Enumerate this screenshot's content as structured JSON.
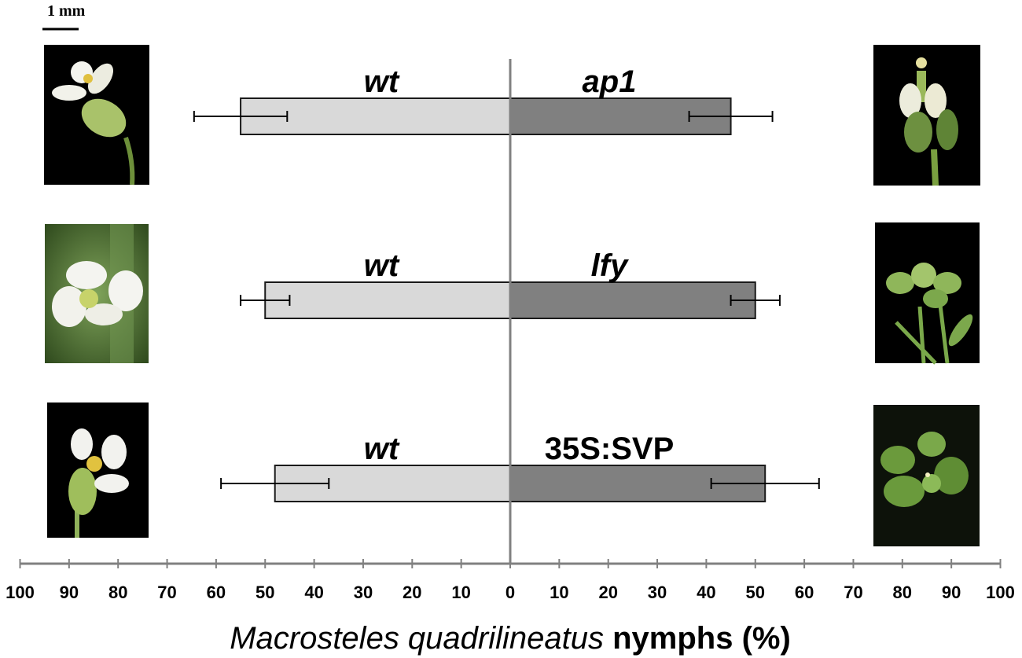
{
  "scale_bar": {
    "label": "1 mm"
  },
  "axis_title": {
    "italic_part": "Macrosteles quadrilineatus",
    "plain_part": " nymphs (%)"
  },
  "colors": {
    "left_bar": "#d9d9d9",
    "right_bar": "#808080",
    "bar_outline": "#1a1a1a",
    "axis": "#808080",
    "photo_background": "#000000"
  },
  "chart_data": {
    "type": "bar",
    "orientation": "horizontal-diverging",
    "xlim": [
      -100,
      100
    ],
    "x_ticks": [
      -100,
      -90,
      -80,
      -70,
      -60,
      -50,
      -40,
      -30,
      -20,
      -10,
      0,
      10,
      20,
      30,
      40,
      50,
      60,
      70,
      80,
      90,
      100
    ],
    "x_tick_labels": [
      "100",
      "90",
      "80",
      "70",
      "60",
      "50",
      "40",
      "30",
      "20",
      "10",
      "0",
      "10",
      "20",
      "30",
      "40",
      "50",
      "60",
      "70",
      "80",
      "90",
      "100"
    ],
    "xlabel": "Macrosteles quadrilineatus nymphs (%)",
    "grid": false,
    "rows": [
      {
        "left_label": "wt",
        "left_value": 55,
        "left_error": 9.5,
        "left_italic": true,
        "right_label": "ap1",
        "right_value": 45,
        "right_error": 8.5,
        "right_italic": true,
        "left_photo": "white-wild-type-flower-photo",
        "right_photo": "ap1-mutant-flower-photo"
      },
      {
        "left_label": "wt",
        "left_value": 50,
        "left_error": 5,
        "left_italic": true,
        "right_label": "lfy",
        "right_value": 50,
        "right_error": 5,
        "right_italic": true,
        "left_photo": "white-wild-type-flower-photo",
        "right_photo": "lfy-mutant-leafy-flower-photo"
      },
      {
        "left_label": "wt",
        "left_value": 48,
        "left_error": 11,
        "left_italic": true,
        "right_label": "35S:SVP",
        "right_value": 52,
        "right_error": 11,
        "right_italic": false,
        "left_photo": "white-wild-type-flower-photo",
        "right_photo": "35S-SVP-leafy-flower-photo"
      }
    ]
  }
}
